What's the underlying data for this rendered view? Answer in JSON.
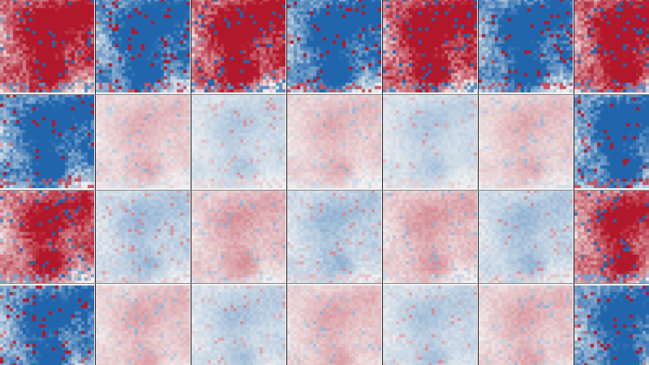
{
  "mosaic": {
    "columns": 7,
    "rows": 4,
    "colormap": {
      "negative": "#2166ac",
      "neutral": "#f2f2f2",
      "positive": "#b2182b"
    },
    "tiles": [
      {
        "pattern": "warm",
        "intensity": 1.0
      },
      {
        "pattern": "cool",
        "intensity": 1.0
      },
      {
        "pattern": "warm",
        "intensity": 1.0
      },
      {
        "pattern": "cool",
        "intensity": 1.0
      },
      {
        "pattern": "warm",
        "intensity": 1.0
      },
      {
        "pattern": "cool",
        "intensity": 1.0
      },
      {
        "pattern": "warm",
        "intensity": 1.0
      },
      {
        "pattern": "cool",
        "intensity": 1.0
      },
      {
        "pattern": "warm",
        "intensity": 0.45
      },
      {
        "pattern": "cool",
        "intensity": 0.45
      },
      {
        "pattern": "warm",
        "intensity": 0.45
      },
      {
        "pattern": "cool",
        "intensity": 0.45
      },
      {
        "pattern": "warm",
        "intensity": 0.45
      },
      {
        "pattern": "cool",
        "intensity": 1.0
      },
      {
        "pattern": "warm",
        "intensity": 0.8
      },
      {
        "pattern": "cool",
        "intensity": 0.6
      },
      {
        "pattern": "warm",
        "intensity": 0.6
      },
      {
        "pattern": "cool",
        "intensity": 0.6
      },
      {
        "pattern": "warm",
        "intensity": 0.6
      },
      {
        "pattern": "cool",
        "intensity": 0.6
      },
      {
        "pattern": "warm",
        "intensity": 0.8
      },
      {
        "pattern": "cool",
        "intensity": 0.9
      },
      {
        "pattern": "warm",
        "intensity": 0.5
      },
      {
        "pattern": "cool",
        "intensity": 0.5
      },
      {
        "pattern": "warm",
        "intensity": 0.5
      },
      {
        "pattern": "cool",
        "intensity": 0.5
      },
      {
        "pattern": "warm",
        "intensity": 0.5
      },
      {
        "pattern": "cool",
        "intensity": 0.9
      }
    ]
  }
}
